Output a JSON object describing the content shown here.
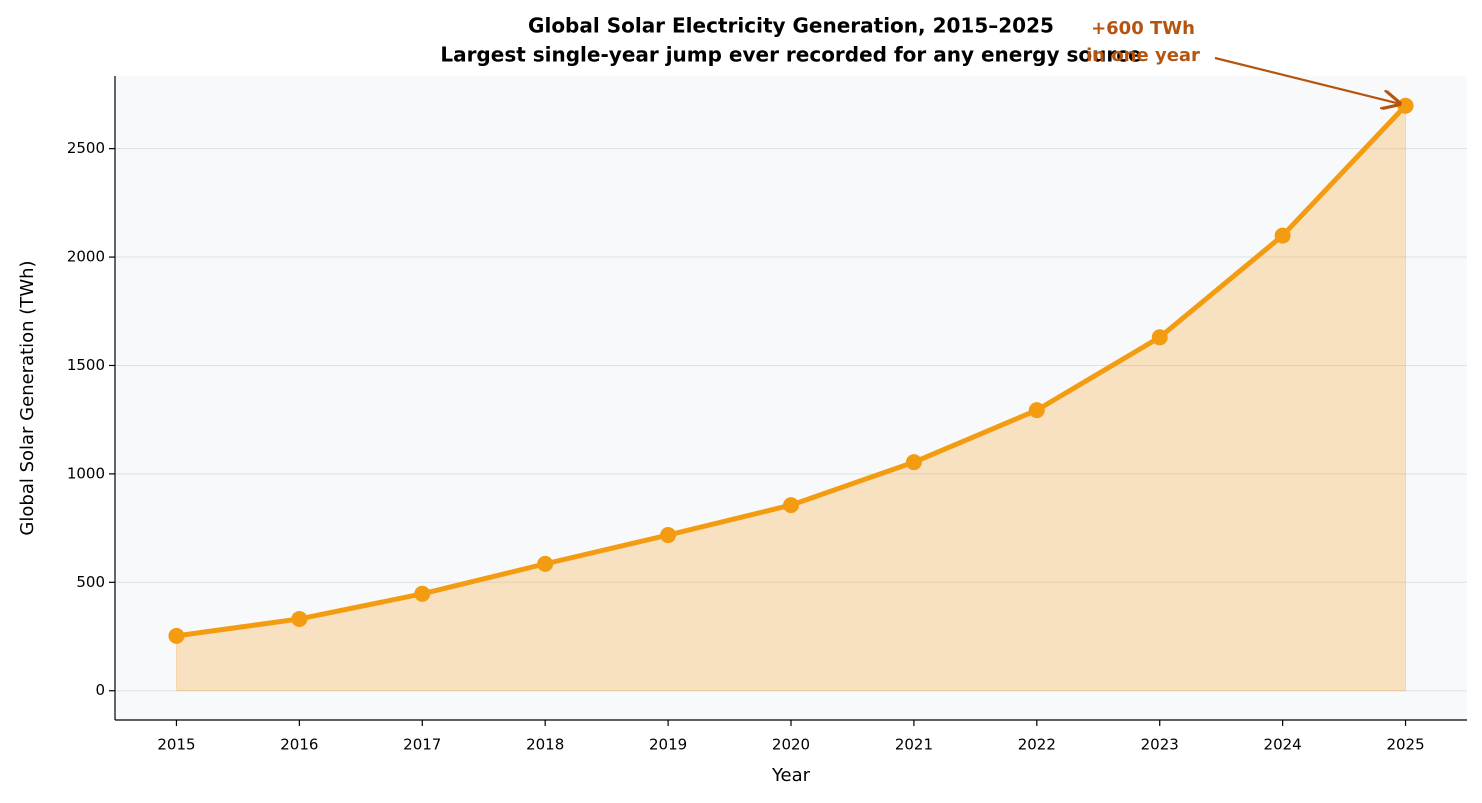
{
  "chart_data": {
    "type": "line",
    "title": "Global Solar Electricity Generation, 2015–2025",
    "subtitle": "Largest single-year jump ever recorded for any energy source",
    "x_label": "Year",
    "y_label": "Global Solar Generation (TWh)",
    "x": [
      2015,
      2016,
      2017,
      2018,
      2019,
      2020,
      2021,
      2022,
      2023,
      2024,
      2025
    ],
    "series": [
      {
        "name": "Global Solar Generation",
        "color": "#f39c12",
        "values": [
          253,
          331,
          447,
          585,
          718,
          856,
          1054,
          1294,
          1630,
          2099,
          2698
        ]
      }
    ],
    "xlim": [
      2014.5,
      2025.5
    ],
    "xticks": [
      2015,
      2016,
      2017,
      2018,
      2019,
      2020,
      2021,
      2022,
      2023,
      2024,
      2025
    ],
    "ylim": [
      -135,
      2835
    ],
    "yticks": [
      0,
      500,
      1000,
      1500,
      2000,
      2500
    ],
    "grid": true,
    "fill_area": true,
    "annotation_lines": [
      "+600 TWh",
      "in one year"
    ],
    "annotation_color": "#b5540f"
  }
}
